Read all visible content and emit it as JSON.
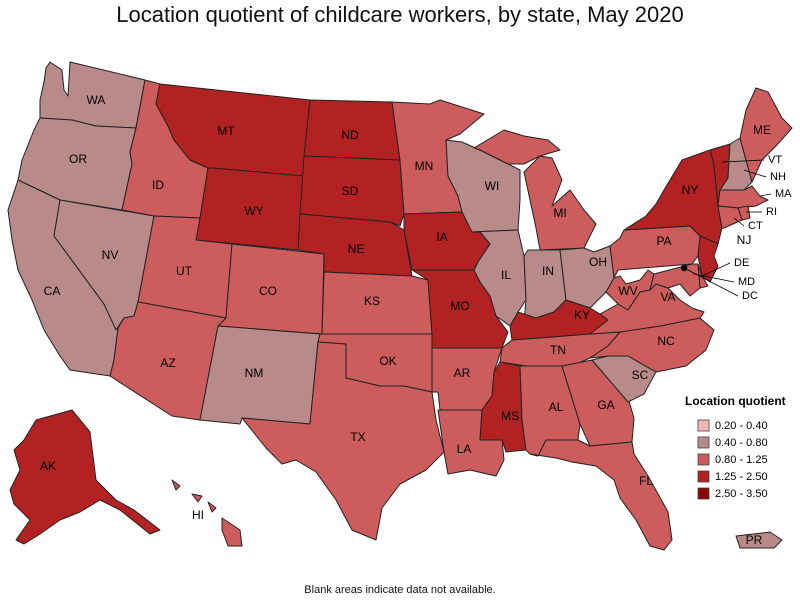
{
  "title": "Location quotient of childcare workers, by state, May 2020",
  "footnote": "Blank areas indicate data not available.",
  "legend": {
    "title": "Location quotient",
    "bins": [
      {
        "label": "0.20 - 0.40",
        "color": "#f4b8b8"
      },
      {
        "label": "0.40 - 0.80",
        "color": "#b88a8a"
      },
      {
        "label": "0.80 - 1.25",
        "color": "#cd5c5c"
      },
      {
        "label": "1.25 - 2.50",
        "color": "#b22222"
      },
      {
        "label": "2.50 - 3.50",
        "color": "#8b0000"
      }
    ]
  },
  "chart_data": {
    "type": "choropleth",
    "states": [
      {
        "abbr": "WA",
        "bin": 1
      },
      {
        "abbr": "OR",
        "bin": 1
      },
      {
        "abbr": "CA",
        "bin": 1
      },
      {
        "abbr": "NV",
        "bin": 1
      },
      {
        "abbr": "ID",
        "bin": 2
      },
      {
        "abbr": "MT",
        "bin": 3
      },
      {
        "abbr": "WY",
        "bin": 3
      },
      {
        "abbr": "UT",
        "bin": 2
      },
      {
        "abbr": "CO",
        "bin": 2
      },
      {
        "abbr": "AZ",
        "bin": 2
      },
      {
        "abbr": "NM",
        "bin": 1
      },
      {
        "abbr": "ND",
        "bin": 3
      },
      {
        "abbr": "SD",
        "bin": 3
      },
      {
        "abbr": "NE",
        "bin": 3
      },
      {
        "abbr": "KS",
        "bin": 2
      },
      {
        "abbr": "OK",
        "bin": 2
      },
      {
        "abbr": "TX",
        "bin": 2
      },
      {
        "abbr": "MN",
        "bin": 2
      },
      {
        "abbr": "IA",
        "bin": 3
      },
      {
        "abbr": "MO",
        "bin": 3
      },
      {
        "abbr": "AR",
        "bin": 2
      },
      {
        "abbr": "LA",
        "bin": 2
      },
      {
        "abbr": "WI",
        "bin": 1
      },
      {
        "abbr": "IL",
        "bin": 1
      },
      {
        "abbr": "MI",
        "bin": 2
      },
      {
        "abbr": "IN",
        "bin": 1
      },
      {
        "abbr": "OH",
        "bin": 1
      },
      {
        "abbr": "KY",
        "bin": 3
      },
      {
        "abbr": "TN",
        "bin": 2
      },
      {
        "abbr": "MS",
        "bin": 3
      },
      {
        "abbr": "AL",
        "bin": 2
      },
      {
        "abbr": "GA",
        "bin": 2
      },
      {
        "abbr": "FL",
        "bin": 2
      },
      {
        "abbr": "SC",
        "bin": 1
      },
      {
        "abbr": "NC",
        "bin": 2
      },
      {
        "abbr": "VA",
        "bin": 2
      },
      {
        "abbr": "WV",
        "bin": 2
      },
      {
        "abbr": "PA",
        "bin": 2
      },
      {
        "abbr": "NY",
        "bin": 3
      },
      {
        "abbr": "VT",
        "bin": 3
      },
      {
        "abbr": "NH",
        "bin": 1
      },
      {
        "abbr": "ME",
        "bin": 2
      },
      {
        "abbr": "MA",
        "bin": 2
      },
      {
        "abbr": "RI",
        "bin": 2
      },
      {
        "abbr": "CT",
        "bin": 2
      },
      {
        "abbr": "NJ",
        "bin": 3
      },
      {
        "abbr": "DE",
        "bin": 2
      },
      {
        "abbr": "MD",
        "bin": 2
      },
      {
        "abbr": "DC",
        "bin": 4
      },
      {
        "abbr": "AK",
        "bin": 3
      },
      {
        "abbr": "HI",
        "bin": 2
      },
      {
        "abbr": "PR",
        "bin": 1
      }
    ]
  }
}
